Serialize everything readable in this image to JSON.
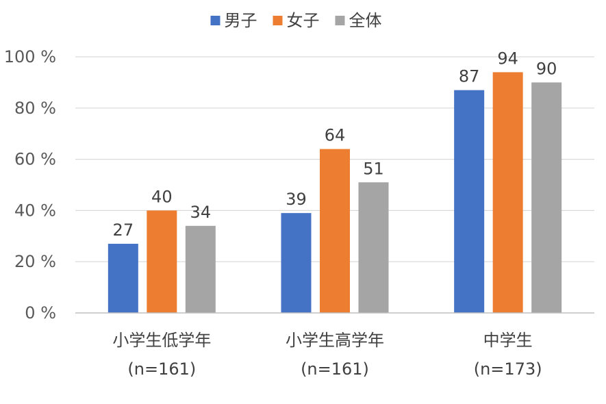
{
  "chart_data": {
    "type": "bar",
    "categories": [
      "小学生低学年",
      "小学生高学年",
      "中学生"
    ],
    "category_counts": [
      "(n=161)",
      "(n=161)",
      "(n=173)"
    ],
    "series": [
      {
        "name": "男子",
        "color": "#4472c4",
        "values": [
          27,
          39,
          87
        ]
      },
      {
        "name": "女子",
        "color": "#ed7d31",
        "values": [
          40,
          64,
          94
        ]
      },
      {
        "name": "全体",
        "color": "#a5a5a5",
        "values": [
          34,
          51,
          90
        ]
      }
    ],
    "y_ticks": [
      "0 %",
      "20 %",
      "40 %",
      "60 %",
      "80 %",
      "100 %"
    ],
    "ylim": [
      0,
      100
    ],
    "grid": true,
    "legend_position": "top-center"
  }
}
